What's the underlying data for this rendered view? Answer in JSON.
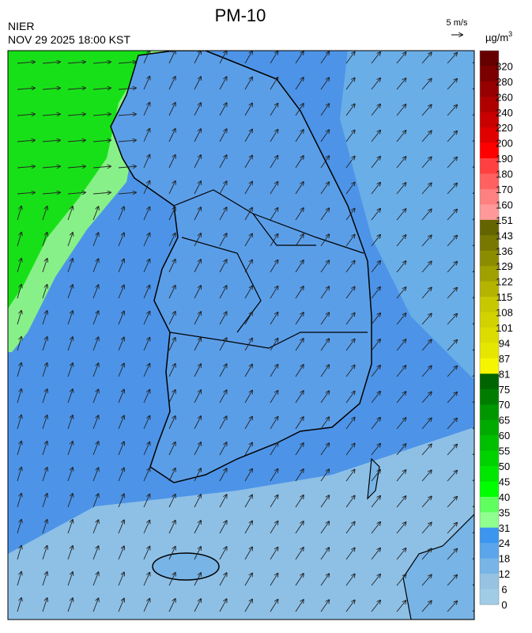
{
  "header": {
    "title": "PM-10",
    "agency": "NIER",
    "datetime": "NOV 29 2025 18:00 KST"
  },
  "wind_scale": {
    "label": "5 m/s"
  },
  "legend": {
    "unit": "µg/m",
    "unit_superscript": "3",
    "labels": [
      "320",
      "280",
      "260",
      "240",
      "220",
      "200",
      "190",
      "180",
      "170",
      "160",
      "151",
      "143",
      "136",
      "129",
      "122",
      "115",
      "108",
      "101",
      "94",
      "87",
      "81",
      "75",
      "70",
      "65",
      "60",
      "55",
      "50",
      "45",
      "40",
      "35",
      "31",
      "24",
      "18",
      "12",
      "6",
      "0"
    ],
    "colors": [
      "#640000",
      "#7d0000",
      "#960000",
      "#af0000",
      "#c80000",
      "#e10000",
      "#ff0000",
      "#ff4040",
      "#ff6060",
      "#ff8080",
      "#ff9999",
      "#646400",
      "#787800",
      "#8c8c00",
      "#a0a000",
      "#b4b400",
      "#c8c800",
      "#d2d200",
      "#dcdc00",
      "#e6e600",
      "#f5f500",
      "#006400",
      "#007d00",
      "#009600",
      "#00aa00",
      "#00be00",
      "#00d200",
      "#00e600",
      "#00ff00",
      "#60ff60",
      "#90ff90",
      "#3c96f0",
      "#5aa5eb",
      "#78b4e6",
      "#96c3e1",
      "#a0cce6"
    ]
  }
}
